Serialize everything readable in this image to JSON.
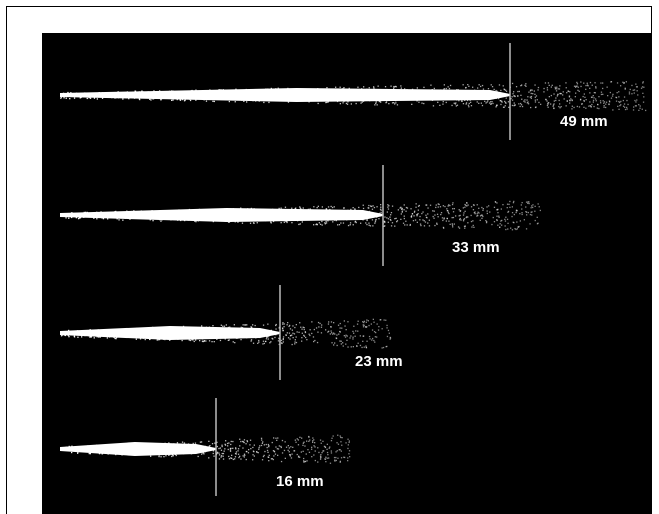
{
  "sprays": [
    {
      "label": "49 mm"
    },
    {
      "label": "33 mm"
    },
    {
      "label": "23 mm"
    },
    {
      "label": "16 mm"
    }
  ]
}
